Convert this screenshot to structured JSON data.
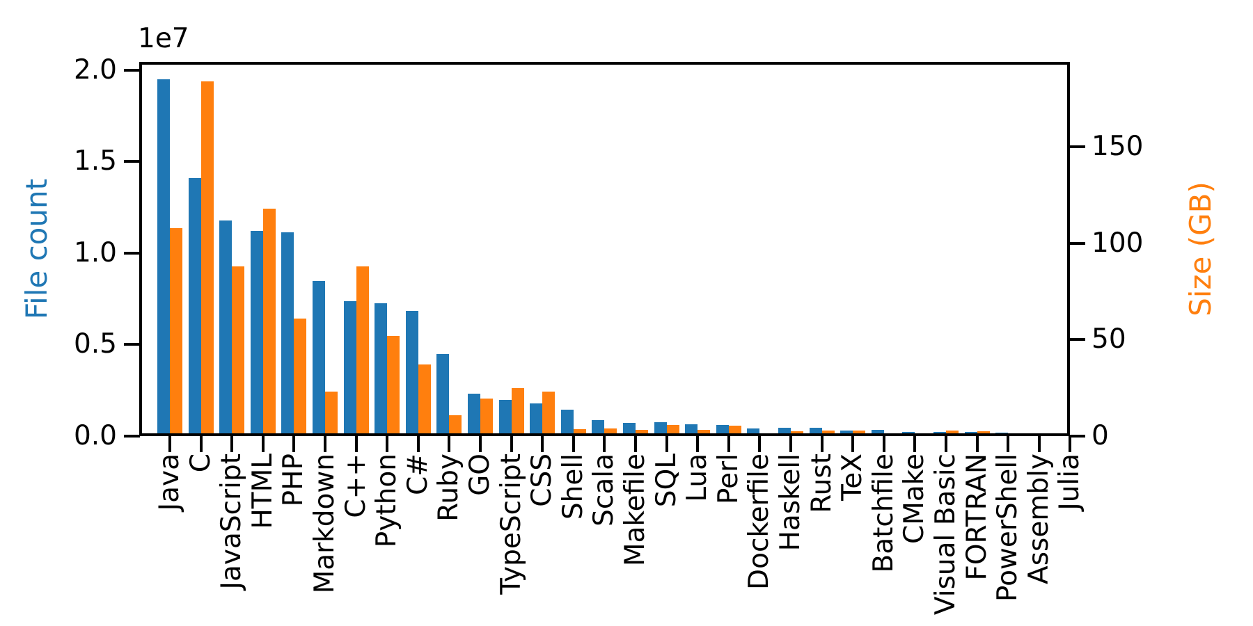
{
  "chart_data": {
    "type": "bar",
    "title": "",
    "grid": false,
    "legend": "none",
    "categories": [
      "Java",
      "C",
      "JavaScript",
      "HTML",
      "PHP",
      "Markdown",
      "C++",
      "Python",
      "C#",
      "Ruby",
      "GO",
      "TypeScript",
      "CSS",
      "Shell",
      "Scala",
      "Makefile",
      "SQL",
      "Lua",
      "Perl",
      "Dockerfile",
      "Haskell",
      "Rust",
      "TeX",
      "Batchfile",
      "CMake",
      "Visual Basic",
      "FORTRAN",
      "PowerShell",
      "Assembly",
      "Julia"
    ],
    "series": [
      {
        "name": "File count",
        "axis": "left",
        "color": "#1f77b4",
        "values": [
          19500000,
          14100000,
          11800000,
          11200000,
          11150000,
          8470000,
          7380000,
          7250000,
          6830000,
          4480000,
          2320000,
          1970000,
          1780000,
          1440000,
          870000,
          720000,
          760000,
          650000,
          610000,
          420000,
          440000,
          450000,
          310000,
          340000,
          230000,
          230000,
          230000,
          190000,
          110000,
          40000
        ]
      },
      {
        "name": "Size (GB)",
        "axis": "right",
        "color": "#ff7f0e",
        "values": [
          108,
          184,
          88,
          118,
          61,
          23,
          88,
          52,
          37,
          11,
          19.5,
          25,
          23,
          3.6,
          3.9,
          3.2,
          5.7,
          3.2,
          5.4,
          1,
          2.5,
          3,
          2.9,
          0.4,
          0.25,
          2.9,
          2.5,
          0.5,
          1.1,
          0.2
        ]
      }
    ],
    "left_axis": {
      "label": "File count",
      "color": "#1f77b4",
      "offset_text": "1e7",
      "tick_values": [
        0,
        5000000,
        10000000,
        15000000,
        20000000
      ],
      "tick_labels": [
        "0.0",
        "0.5",
        "1.0",
        "1.5",
        "2.0"
      ],
      "ylim": [
        0,
        20450000
      ]
    },
    "right_axis": {
      "label": "Size (GB)",
      "color": "#ff7f0e",
      "tick_values": [
        0,
        50,
        100,
        150
      ],
      "tick_labels": [
        "0",
        "50",
        "100",
        "150"
      ],
      "ylim": [
        0,
        194
      ]
    }
  }
}
